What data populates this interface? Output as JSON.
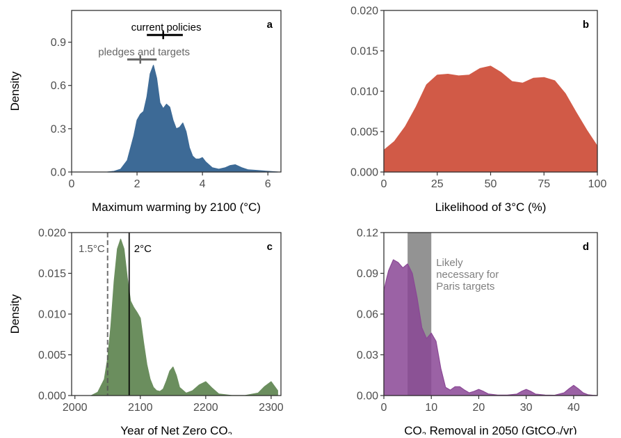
{
  "chart_data": [
    {
      "panel": "a",
      "type": "area",
      "xlabel": "Maximum warming by 2100 (°C)",
      "ylabel": "Density",
      "xlim": [
        0,
        6.4
      ],
      "ylim": [
        0,
        1.12
      ],
      "xticks": [
        0,
        2,
        4,
        6
      ],
      "yticks": [
        0.0,
        0.3,
        0.6,
        0.9
      ],
      "xtick_labels": [
        "0",
        "2",
        "4",
        "6"
      ],
      "ytick_labels": [
        "0.0",
        "0.3",
        "0.6",
        "0.9"
      ],
      "fill": "#3d6a96",
      "x": [
        1.1,
        1.3,
        1.5,
        1.7,
        1.9,
        2.0,
        2.1,
        2.2,
        2.3,
        2.4,
        2.5,
        2.6,
        2.7,
        2.8,
        2.9,
        3.0,
        3.1,
        3.2,
        3.3,
        3.4,
        3.5,
        3.6,
        3.7,
        3.8,
        3.9,
        4.0,
        4.1,
        4.3,
        4.5,
        4.7,
        4.85,
        5.0,
        5.2,
        5.4,
        5.7,
        6.0,
        6.3
      ],
      "y": [
        0.0,
        0.005,
        0.02,
        0.08,
        0.25,
        0.36,
        0.4,
        0.42,
        0.52,
        0.68,
        0.74,
        0.65,
        0.48,
        0.44,
        0.47,
        0.45,
        0.36,
        0.3,
        0.31,
        0.34,
        0.28,
        0.17,
        0.11,
        0.09,
        0.09,
        0.1,
        0.07,
        0.03,
        0.02,
        0.03,
        0.045,
        0.05,
        0.03,
        0.015,
        0.01,
        0.005,
        0.0
      ],
      "ranges": [
        {
          "label": "current policies",
          "low": 2.3,
          "high": 3.4,
          "mid": 2.8,
          "y": 0.95,
          "color": "#000000"
        },
        {
          "label": "pledges and targets",
          "low": 1.7,
          "high": 2.6,
          "mid": 2.1,
          "y": 0.78,
          "color": "#666666"
        }
      ]
    },
    {
      "panel": "b",
      "type": "area",
      "xlabel": "Likelihood of 3°C (%)",
      "ylabel": "",
      "xlim": [
        0,
        100
      ],
      "ylim": [
        0,
        0.02
      ],
      "xticks": [
        0,
        25,
        50,
        75,
        100
      ],
      "yticks": [
        0.0,
        0.005,
        0.01,
        0.015,
        0.02
      ],
      "xtick_labels": [
        "0",
        "25",
        "50",
        "75",
        "100"
      ],
      "ytick_labels": [
        "0.000",
        "0.005",
        "0.010",
        "0.015",
        "0.020"
      ],
      "fill": "#d15a47",
      "x": [
        0,
        5,
        10,
        15,
        20,
        25,
        30,
        35,
        40,
        45,
        50,
        55,
        60,
        65,
        70,
        75,
        80,
        85,
        90,
        95,
        100
      ],
      "y": [
        0.0027,
        0.0038,
        0.0056,
        0.008,
        0.0108,
        0.012,
        0.0121,
        0.0119,
        0.012,
        0.0128,
        0.0131,
        0.0123,
        0.0112,
        0.011,
        0.0116,
        0.0117,
        0.0113,
        0.0097,
        0.0074,
        0.0052,
        0.0032
      ]
    },
    {
      "panel": "c",
      "type": "area",
      "xlabel": "Year of Net Zero CO",
      "xlabel_sub": "2",
      "ylabel": "Density",
      "xlim": [
        1995,
        2315
      ],
      "ylim": [
        0,
        0.02
      ],
      "xticks": [
        2000,
        2100,
        2200,
        2300
      ],
      "yticks": [
        0.0,
        0.005,
        0.01,
        0.015,
        0.02
      ],
      "xtick_labels": [
        "2000",
        "2100",
        "2200",
        "2300"
      ],
      "ytick_labels": [
        "0.000",
        "0.005",
        "0.010",
        "0.015",
        "0.020"
      ],
      "fill": "#6b8e5e",
      "x": [
        2025,
        2035,
        2045,
        2050,
        2055,
        2060,
        2065,
        2070,
        2075,
        2080,
        2085,
        2090,
        2095,
        2100,
        2105,
        2110,
        2115,
        2120,
        2125,
        2130,
        2135,
        2140,
        2145,
        2150,
        2155,
        2160,
        2170,
        2180,
        2190,
        2200,
        2210,
        2220,
        2240,
        2260,
        2280,
        2290,
        2300,
        2310
      ],
      "y": [
        0.0,
        0.0004,
        0.002,
        0.0045,
        0.0085,
        0.014,
        0.018,
        0.0192,
        0.018,
        0.0145,
        0.0116,
        0.0108,
        0.0102,
        0.0095,
        0.0065,
        0.0038,
        0.002,
        0.001,
        0.0006,
        0.0005,
        0.0008,
        0.0018,
        0.003,
        0.0035,
        0.0025,
        0.001,
        0.0003,
        0.0006,
        0.0013,
        0.0017,
        0.0009,
        0.0002,
        0.0,
        0.0,
        0.0003,
        0.0011,
        0.0017,
        0.0006
      ],
      "vlines": [
        {
          "label": "1.5°C",
          "x": 2050,
          "style": "dashed",
          "color": "#555555"
        },
        {
          "label": "2°C",
          "x": 2083,
          "style": "solid",
          "color": "#000000"
        }
      ]
    },
    {
      "panel": "d",
      "type": "area",
      "xlabel_parts": [
        "CO",
        "2",
        " Removal in 2050 (GtCO",
        "2",
        "/yr)"
      ],
      "ylabel": "",
      "xlim": [
        0,
        45
      ],
      "ylim": [
        0,
        0.12
      ],
      "xticks": [
        0,
        10,
        20,
        30,
        40
      ],
      "yticks": [
        0.0,
        0.03,
        0.06,
        0.09,
        0.12
      ],
      "xtick_labels": [
        "0",
        "10",
        "20",
        "30",
        "40"
      ],
      "ytick_labels": [
        "0.00",
        "0.03",
        "0.06",
        "0.09",
        "0.12"
      ],
      "fill": "#8a4795",
      "x": [
        0,
        0.5,
        1,
        2,
        3,
        4,
        5,
        6,
        7,
        8,
        9,
        10,
        11,
        12,
        13,
        14,
        15,
        16,
        17,
        18,
        19,
        20,
        21,
        22,
        24,
        26,
        28,
        29,
        30,
        31,
        32,
        34,
        36,
        38,
        39,
        40,
        41,
        42,
        43,
        44,
        45
      ],
      "y": [
        0.077,
        0.085,
        0.092,
        0.1,
        0.098,
        0.094,
        0.097,
        0.09,
        0.072,
        0.05,
        0.042,
        0.046,
        0.04,
        0.02,
        0.006,
        0.004,
        0.0065,
        0.0065,
        0.004,
        0.002,
        0.003,
        0.0045,
        0.003,
        0.0012,
        0.0003,
        0.0003,
        0.001,
        0.003,
        0.0045,
        0.003,
        0.001,
        0.0003,
        0.0002,
        0.002,
        0.005,
        0.0075,
        0.005,
        0.002,
        0.0006,
        0.0002,
        0.0
      ],
      "band": {
        "x0": 5,
        "x1": 10,
        "color": "#6f6f6f",
        "label_lines": [
          "Likely",
          "necessary for",
          "Paris targets"
        ]
      }
    }
  ],
  "panel_labels": [
    "a",
    "b",
    "c",
    "d"
  ],
  "colors": {
    "axis": "#333333",
    "tick_text": "#4d4d4d",
    "band_text": "#808080"
  }
}
